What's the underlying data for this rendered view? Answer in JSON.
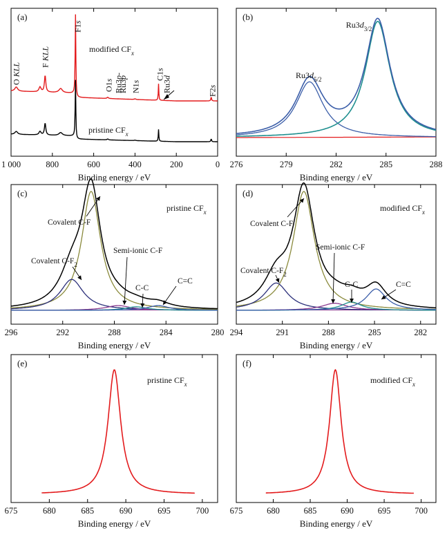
{
  "figure": {
    "colors": {
      "red": "#e31a1c",
      "black": "#000000",
      "blue": "#3a5da8",
      "olive": "#8a8a3c",
      "teal": "#1f8f8f",
      "purple": "#8b3a8f",
      "navy": "#2b2f7a"
    }
  },
  "chart_data": [
    {
      "panel": "(a)",
      "type": "line",
      "xlabel": "Binding energy / eV",
      "xlim": [
        1000,
        0
      ],
      "reversed": true,
      "xticks": [
        "1 000",
        "800",
        "600",
        "400",
        "200",
        "0"
      ],
      "xtick_values": [
        1000,
        800,
        600,
        400,
        200,
        0
      ],
      "labels": {
        "mod": "modified CF",
        "pri": "pristine CF",
        "x": "x"
      },
      "peaks": [
        {
          "name": "O KLL",
          "x": 975
        },
        {
          "name": "F KLL",
          "x": 835
        },
        {
          "name": "F1s",
          "x": 688
        },
        {
          "name": "O1s",
          "x": 532
        },
        {
          "name": "Ru3p-",
          "x": 484
        },
        {
          "name": "Ru3p",
          "x": 462
        },
        {
          "name": "N1s",
          "x": 400
        },
        {
          "name": "C1s",
          "x": 286
        },
        {
          "name": "Ru3d",
          "x": 280
        },
        {
          "name": "F2s",
          "x": 31
        }
      ],
      "series": [
        {
          "color": "#e31a1c"
        },
        {
          "color": "#000000"
        }
      ]
    },
    {
      "panel": "(b)",
      "type": "line",
      "xlabel": "Binding energy / eV",
      "xlim": [
        276,
        288
      ],
      "xticks": [
        "276",
        "279",
        "282",
        "285",
        "288"
      ],
      "xtick_values": [
        276,
        279,
        282,
        285,
        288
      ],
      "annotations": [
        {
          "text": "Ru3d",
          "sub": "5/2",
          "x": 280.4
        },
        {
          "text": "Ru3d",
          "sub": "3/2",
          "x": 284.5
        }
      ],
      "peaks": [
        {
          "center": 280.4,
          "height": 0.48,
          "width": 1.0
        },
        {
          "center": 284.5,
          "height": 1.0,
          "width": 0.9
        }
      ]
    },
    {
      "panel": "(c)",
      "type": "line",
      "xlabel": "Binding energy / eV",
      "xlim": [
        296,
        280
      ],
      "reversed": true,
      "xticks": [
        "296",
        "292",
        "288",
        "284",
        "280"
      ],
      "xtick_values": [
        296,
        292,
        288,
        284,
        280
      ],
      "legend": "pristine CF",
      "legend_sub": "x",
      "components": [
        {
          "name": "Covalent C-F",
          "center": 289.8,
          "height": 1.0,
          "width": 0.9
        },
        {
          "name": "Covalent C-F",
          "sub": "2",
          "center": 291.3,
          "height": 0.26,
          "width": 1.1
        },
        {
          "name": "Semi-ionic C-F",
          "center": 287.7,
          "height": 0.04,
          "width": 1.2
        },
        {
          "name": "C-C",
          "center": 286.3,
          "height": 0.03,
          "width": 1.0
        },
        {
          "name": "C=C",
          "center": 284.6,
          "height": 0.04,
          "width": 1.0
        }
      ]
    },
    {
      "panel": "(d)",
      "type": "line",
      "xlabel": "Binding energy / eV",
      "xlim": [
        294,
        281
      ],
      "reversed": true,
      "xticks": [
        "294",
        "291",
        "288",
        "285",
        "282"
      ],
      "xtick_values": [
        294,
        291,
        288,
        285,
        282
      ],
      "legend": "modified CF",
      "legend_sub": "x",
      "components": [
        {
          "name": "Covalent C-F",
          "center": 289.6,
          "height": 1.0,
          "width": 0.85
        },
        {
          "name": "Covalent C-F",
          "sub": "2",
          "center": 291.4,
          "height": 0.23,
          "width": 0.95
        },
        {
          "name": "Semi-ionic C-F",
          "center": 287.6,
          "height": 0.06,
          "width": 1.0
        },
        {
          "name": "C-C",
          "center": 286.5,
          "height": 0.07,
          "width": 0.8
        },
        {
          "name": "C=C",
          "center": 284.9,
          "height": 0.18,
          "width": 0.8
        }
      ]
    },
    {
      "panel": "(e)",
      "type": "line",
      "xlabel": "Binding energy / eV",
      "xlim": [
        675,
        702
      ],
      "xticks": [
        "675",
        "680",
        "685",
        "690",
        "695",
        "700"
      ],
      "xtick_values": [
        675,
        680,
        685,
        690,
        695,
        700
      ],
      "legend": "pristine CF",
      "legend_sub": "x",
      "peak": {
        "center": 688.5,
        "width": 1.0
      },
      "range": [
        679,
        699
      ]
    },
    {
      "panel": "(f)",
      "type": "line",
      "xlabel": "Binding energy / eV",
      "xlim": [
        675,
        702
      ],
      "xticks": [
        "675",
        "680",
        "685",
        "690",
        "695",
        "700"
      ],
      "xtick_values": [
        675,
        680,
        685,
        690,
        695,
        700
      ],
      "legend": "modified CF",
      "legend_sub": "x",
      "peak": {
        "center": 688.4,
        "width": 0.95
      },
      "range": [
        679,
        699
      ]
    }
  ]
}
